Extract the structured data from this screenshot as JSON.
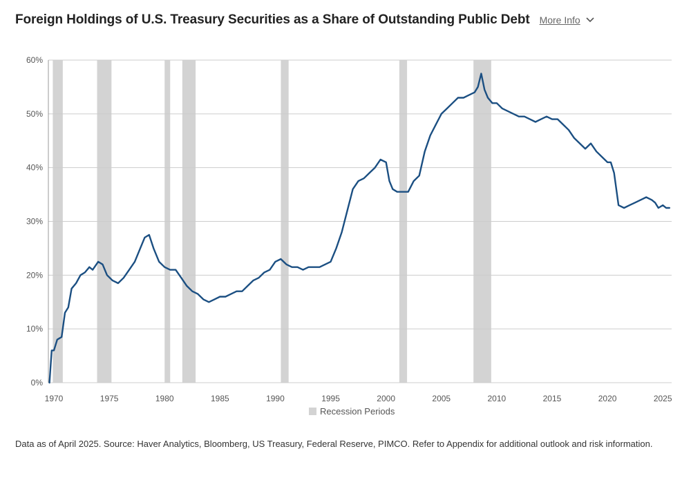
{
  "header": {
    "title": "Foreign Holdings of U.S. Treasury Securities as a Share of Outstanding Public Debt",
    "more_info": "More Info",
    "chevron_icon": "chevron-down-icon"
  },
  "footer": {
    "note": "Data as of April 2025. Source: Haver Analytics, Bloomberg, US Treasury, Federal Reserve, PIMCO. Refer to Appendix for additional outlook and risk information."
  },
  "chart_data": {
    "type": "line",
    "title": "Foreign Holdings of U.S. Treasury Securities as a Share of Outstanding Public Debt",
    "xlabel": "",
    "ylabel": "",
    "xlim": [
      1969.5,
      2025.8
    ],
    "ylim": [
      0,
      60
    ],
    "x_ticks": [
      1970,
      1975,
      1980,
      1985,
      1990,
      1995,
      2000,
      2005,
      2010,
      2015,
      2020,
      2025
    ],
    "y_ticks": [
      0,
      10,
      20,
      30,
      40,
      50,
      60
    ],
    "y_tick_labels": [
      "0%",
      "10%",
      "20%",
      "30%",
      "40%",
      "50%",
      "60%"
    ],
    "grid": true,
    "colors": {
      "line": "#1b4f82",
      "recession": "#d3d3d3",
      "grid": "#cccccc"
    },
    "series": [
      {
        "x": [
          1969.6,
          1969.8,
          1970.0,
          1970.3,
          1970.7,
          1971.0,
          1971.3,
          1971.6,
          1972.0,
          1972.4,
          1972.8,
          1973.2,
          1973.5,
          1974.0,
          1974.4,
          1974.8,
          1975.3,
          1975.8,
          1976.3,
          1976.8,
          1977.3,
          1977.8,
          1978.2,
          1978.6,
          1979.0,
          1979.5,
          1980.0,
          1980.5,
          1981.0,
          1981.5,
          1982.0,
          1982.5,
          1983.0,
          1983.5,
          1984.0,
          1984.5,
          1985.0,
          1985.5,
          1986.0,
          1986.5,
          1987.0,
          1987.5,
          1988.0,
          1988.5,
          1989.0,
          1989.5,
          1990.0,
          1990.5,
          1991.0,
          1991.5,
          1992.0,
          1992.5,
          1993.0,
          1993.5,
          1994.0,
          1994.5,
          1995.0,
          1995.5,
          1996.0,
          1996.5,
          1997.0,
          1997.5,
          1998.0,
          1998.5,
          1999.0,
          1999.5,
          2000.0,
          2000.3,
          2000.6,
          2001.0,
          2001.5,
          2002.0,
          2002.5,
          2003.0,
          2003.5,
          2004.0,
          2004.5,
          2005.0,
          2005.5,
          2006.0,
          2006.5,
          2007.0,
          2007.5,
          2008.0,
          2008.3,
          2008.6,
          2008.9,
          2009.2,
          2009.6,
          2010.0,
          2010.5,
          2011.0,
          2011.5,
          2012.0,
          2012.5,
          2013.0,
          2013.5,
          2014.0,
          2014.5,
          2015.0,
          2015.5,
          2016.0,
          2016.5,
          2017.0,
          2017.5,
          2018.0,
          2018.5,
          2019.0,
          2019.5,
          2020.0,
          2020.3,
          2020.6,
          2021.0,
          2021.5,
          2022.0,
          2022.5,
          2023.0,
          2023.5,
          2024.0,
          2024.3,
          2024.6,
          2025.0,
          2025.3,
          2025.6
        ],
        "values": [
          0,
          6,
          6,
          8,
          8.5,
          13,
          14,
          17.5,
          18.5,
          20,
          20.5,
          21.5,
          21,
          22.5,
          22,
          20,
          19,
          18.5,
          19.5,
          21,
          22.5,
          25,
          27,
          27.5,
          25,
          22.5,
          21.5,
          21,
          21,
          19.5,
          18,
          17,
          16.5,
          15.5,
          15,
          15.5,
          16,
          16,
          16.5,
          17,
          17,
          18,
          19,
          19.5,
          20.5,
          21,
          22.5,
          23,
          22,
          21.5,
          21.5,
          21,
          21.5,
          21.5,
          21.5,
          22,
          22.5,
          25,
          28,
          32,
          36,
          37.5,
          38,
          39,
          40,
          41.5,
          41,
          37.5,
          36,
          35.5,
          35.5,
          35.5,
          37.5,
          38.5,
          43,
          46,
          48,
          50,
          51,
          52,
          53,
          53,
          53.5,
          54,
          55,
          57.5,
          54.5,
          53,
          52,
          52,
          51,
          50.5,
          50,
          49.5,
          49.5,
          49,
          48.5,
          49,
          49.5,
          49,
          49,
          48,
          47,
          45.5,
          44.5,
          43.5,
          44.5,
          43,
          42,
          41,
          41,
          39,
          33,
          32.5,
          33,
          33.5,
          34,
          34.5,
          34,
          33.5,
          32.5,
          33,
          32.5,
          32.5
        ]
      }
    ],
    "recessions": [
      [
        1969.9,
        1970.8
      ],
      [
        1973.9,
        1975.2
      ],
      [
        1980.0,
        1980.5
      ],
      [
        1981.6,
        1982.8
      ],
      [
        1990.5,
        1991.2
      ],
      [
        2001.2,
        2001.9
      ],
      [
        2007.9,
        2009.5
      ]
    ],
    "legend": {
      "label": "Recession Periods",
      "placement": "bottom-center"
    }
  }
}
